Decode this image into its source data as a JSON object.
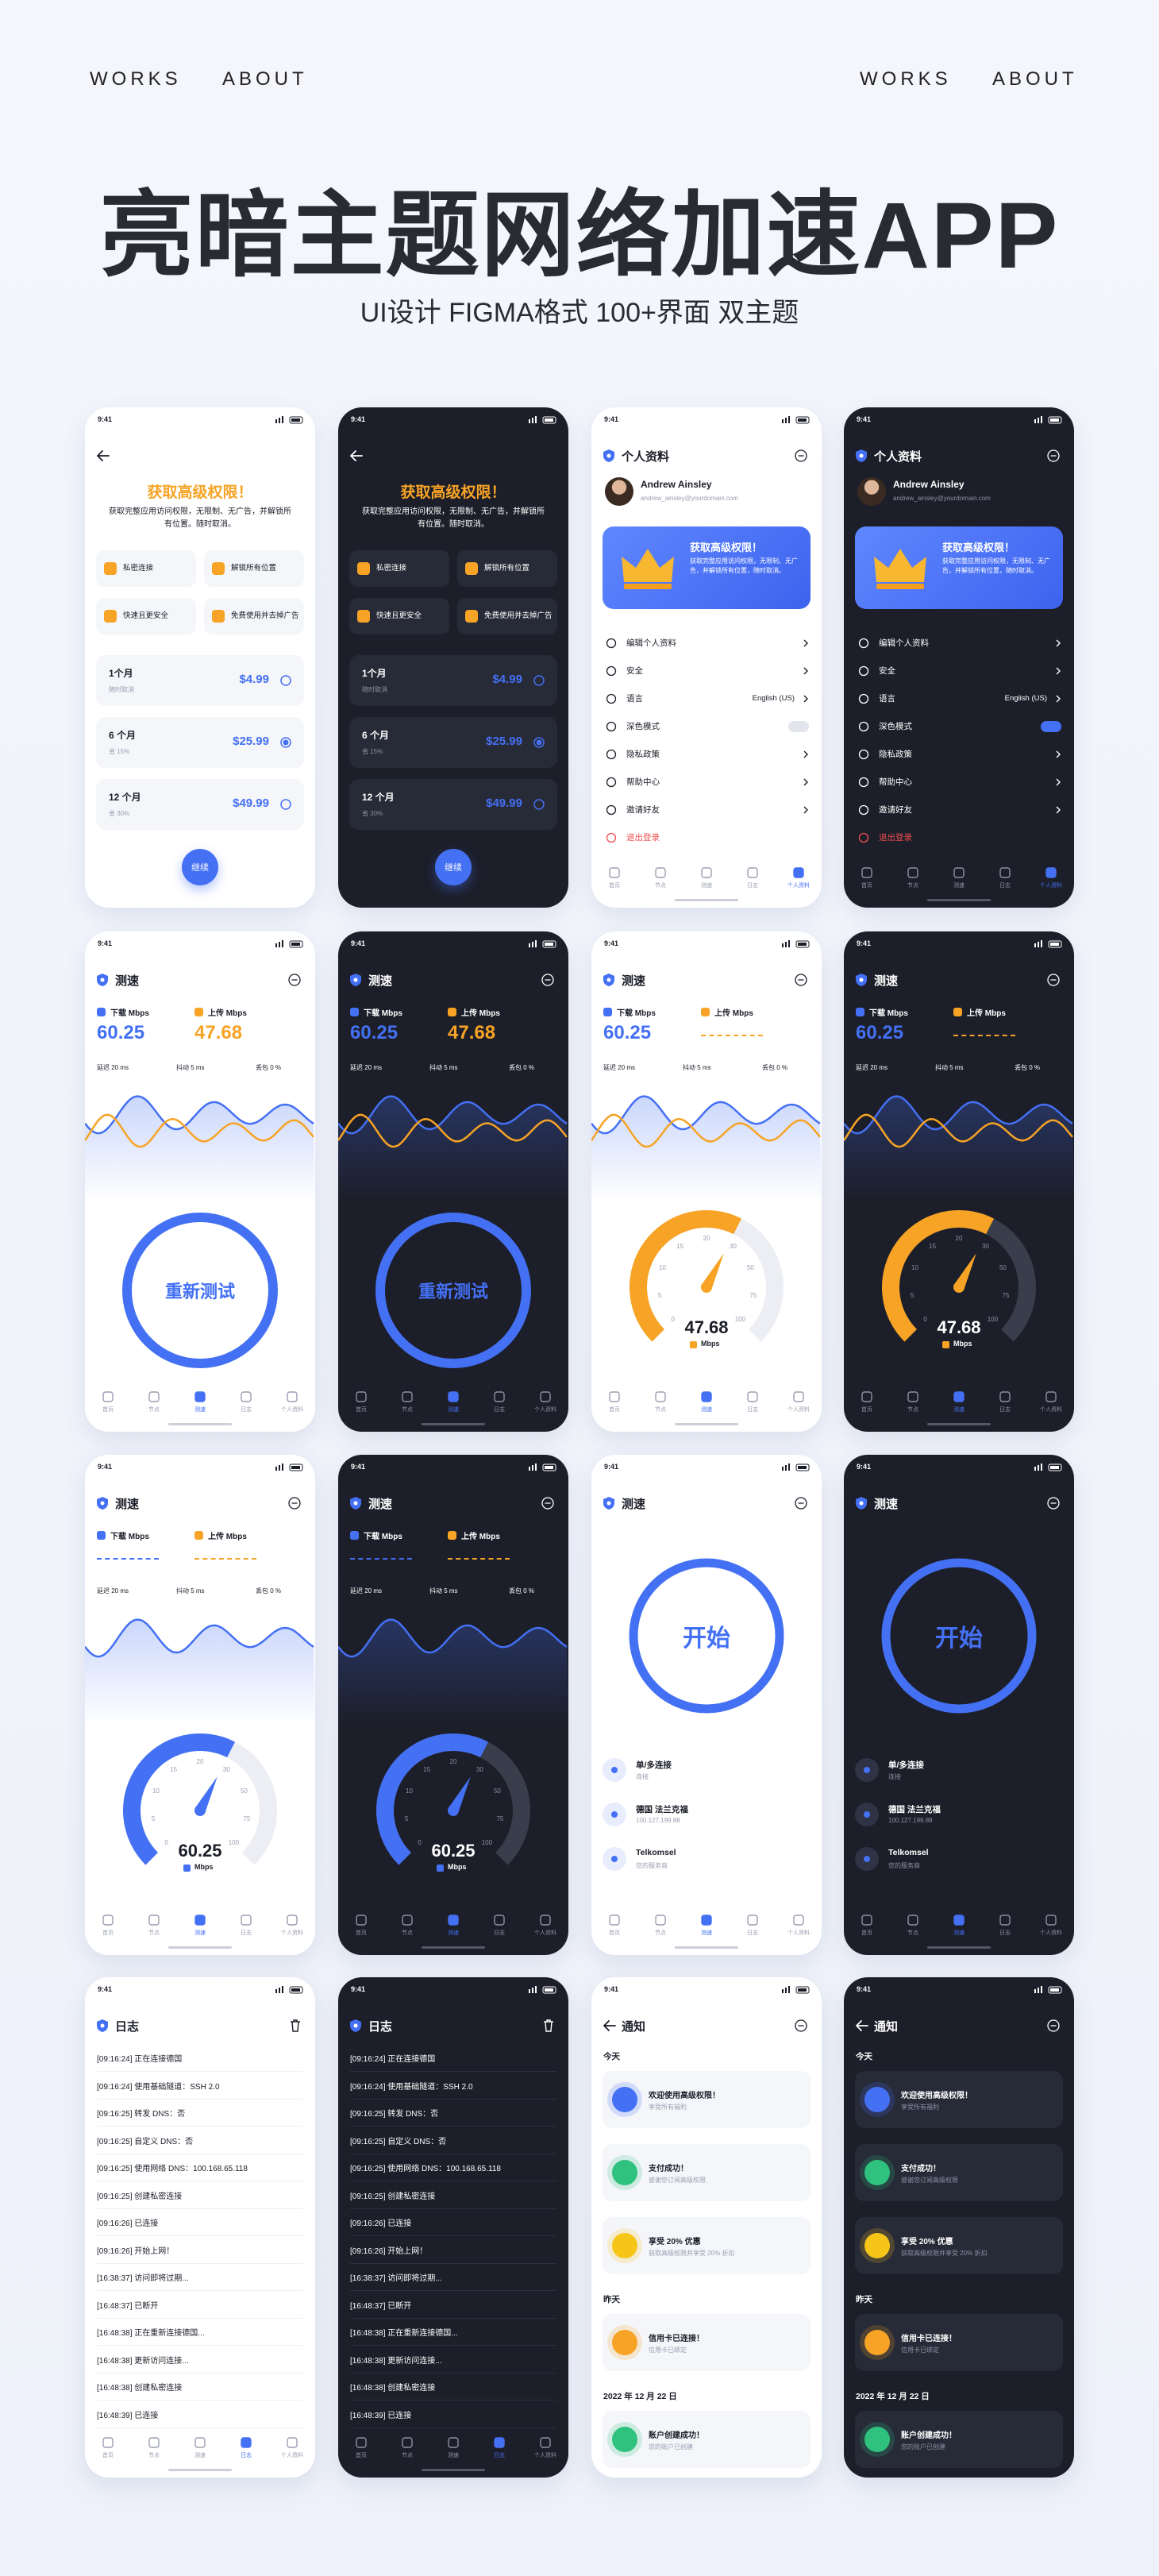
{
  "header": {
    "nav_left": [
      "WORKS",
      "ABOUT"
    ],
    "nav_right": [
      "WORKS",
      "ABOUT"
    ],
    "title": "亮暗主题网络加速APP",
    "subtitle": "UI设计 FIGMA格式 100+界面 双主题"
  },
  "status_time": "9:41",
  "tab_bar": [
    "首页",
    "节点",
    "测速",
    "日志",
    "个人资料"
  ],
  "designs": [
    {
      "type": "premium",
      "title": "获取高级权限！",
      "description": "获取完整应用访问权限，无限制、无广告，并解锁所有位置。随时取消。",
      "features": [
        "私密连接",
        "解锁所有位置",
        "快速且更安全",
        "免费使用并去掉广告"
      ],
      "plans": [
        {
          "name": "1个月",
          "note": "随时取消",
          "price": "$4.99"
        },
        {
          "name": "6 个月",
          "note": "省 15%",
          "price": "$25.99"
        },
        {
          "name": "12 个月",
          "note": "省 30%",
          "price": "$49.99"
        }
      ],
      "button": "继续"
    },
    {
      "type": "profile",
      "title": "个人资料",
      "name": "Andrew Ainsley",
      "email": "andrew_ainsley@yourdomain.com",
      "banner_title": "获取高级权限！",
      "banner_text": "获取完整应用访问权限，无限制、无广告，并解锁所有位置，随时取消。",
      "menu": [
        "编辑个人资料",
        "安全",
        "语言",
        "深色模式",
        "隐私政策",
        "帮助中心",
        "邀请好友",
        "退出登录"
      ],
      "language": "English (US)"
    },
    {
      "type": "speed",
      "title": "测速",
      "download_label": "下载 Mbps",
      "download_value": "60.25",
      "upload_label": "上传 Mbps",
      "upload_value": "47.68",
      "stats": [
        "延迟 20 ms",
        "抖动 5 ms",
        "丢包 0 %"
      ],
      "button": "重新测试"
    },
    {
      "type": "speed",
      "title": "测速",
      "download_label": "下载 Mbps",
      "download_value": "60.25",
      "upload_label": "上传 Mbps",
      "stats": [
        "延迟 20 ms",
        "抖动 5 ms",
        "丢包 0 %"
      ],
      "gauge_value": "47.68",
      "gauge_unit": "Mbps",
      "gauge_color": "#f7a325",
      "gauge_ticks": [
        "0",
        "5",
        "10",
        "15",
        "20",
        "30",
        "50",
        "75",
        "100"
      ]
    },
    {
      "type": "speed",
      "title": "测速",
      "download_label": "下载 Mbps",
      "upload_label": "上传 Mbps",
      "stats": [
        "延迟 20 ms",
        "抖动 5 ms",
        "丢包 0 %"
      ],
      "gauge_value": "60.25",
      "gauge_unit": "Mbps",
      "gauge_color": "#4470f4",
      "gauge_ticks": [
        "0",
        "5",
        "10",
        "15",
        "20",
        "30",
        "50",
        "75",
        "100"
      ]
    },
    {
      "type": "start",
      "title": "测速",
      "button": "开始",
      "items": [
        {
          "title": "单/多连接",
          "subtitle": "连接"
        },
        {
          "title": "德国 法兰克福",
          "subtitle": "100.127.199.88"
        },
        {
          "title": "Telkomsel",
          "subtitle": "您的服务商"
        }
      ]
    },
    {
      "type": "log",
      "title": "日志",
      "entries": [
        "[09:16:24] 正在连接德国",
        "[09:16:24] 使用基础隧道：SSH 2.0",
        "[09:16:25] 转发 DNS：否",
        "[09:16:25] 自定义 DNS：否",
        "[09:16:25] 使用网络 DNS：100.168.65.118",
        "[09:16:25] 创建私密连接",
        "[09:16:26] 已连接",
        "[09:16:26] 开始上网！",
        "[16:38:37] 访问即将过期...",
        "[16:48:37] 已断开",
        "[16:48:38] 正在重新连接德国...",
        "[16:48:38] 更新访问连接...",
        "[16:48:38] 创建私密连接",
        "[16:48:39] 已连接"
      ]
    },
    {
      "type": "notifications",
      "title": "通知",
      "groups": [
        {
          "label": "今天",
          "items": [
            {
              "title": "欢迎使用高级权限！",
              "text": "享受所有福利",
              "color": "#4470f4"
            },
            {
              "title": "支付成功！",
              "text": "感谢您订阅高级权限",
              "color": "#2ec27e"
            },
            {
              "title": "享受 20% 优惠",
              "text": "获取高级权限并享受 20% 折扣",
              "color": "#f5c518"
            }
          ]
        },
        {
          "label": "昨天",
          "items": [
            {
              "title": "信用卡已连接！",
              "text": "信用卡已绑定",
              "color": "#f7a325"
            }
          ]
        },
        {
          "label": "2022 年 12 月 22 日",
          "items": [
            {
              "title": "账户创建成功！",
              "text": "您的账户已创建",
              "color": "#2ec27e"
            }
          ]
        }
      ]
    }
  ]
}
